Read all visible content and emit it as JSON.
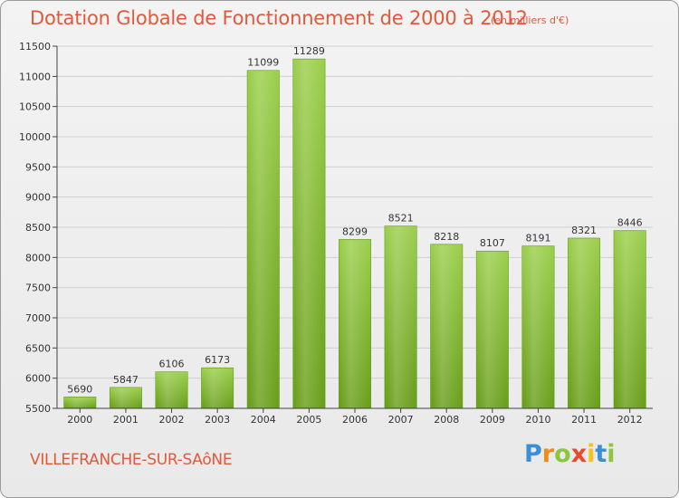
{
  "title": "Dotation Globale de Fonctionnement de 2000 à 2012",
  "subtitle": "(en milliers d'€)",
  "city": "VILLEFRANCHE-SUR-SAôNE",
  "logo": {
    "text": "Proxiti",
    "letters": [
      {
        "char": "P",
        "color": "#3a8fd6"
      },
      {
        "char": "r",
        "color": "#f08a1c"
      },
      {
        "char": "o",
        "color": "#8cc63f"
      },
      {
        "char": "x",
        "color": "#e84a2f"
      },
      {
        "char": "i",
        "color": "#f6c21c"
      },
      {
        "char": "t",
        "color": "#3a8fd6"
      },
      {
        "char": "i",
        "color": "#8cc63f"
      }
    ]
  },
  "colors": {
    "title": "#e05a3a",
    "bar_top": "#9ccf4e",
    "bar_bottom": "#6a9e1c",
    "axis": "#444444",
    "grid": "#cfcfcf"
  },
  "chart_data": {
    "type": "bar",
    "title": "Dotation Globale de Fonctionnement de 2000 à 2012",
    "subtitle": "(en milliers d'€)",
    "categories": [
      "2000",
      "2001",
      "2002",
      "2003",
      "2004",
      "2005",
      "2006",
      "2007",
      "2008",
      "2009",
      "2010",
      "2011",
      "2012"
    ],
    "values": [
      5690,
      5847,
      6106,
      6173,
      11099,
      11289,
      8299,
      8521,
      8218,
      8107,
      8191,
      8321,
      8446
    ],
    "ylim": [
      5500,
      11500
    ],
    "yticks": [
      5500,
      6000,
      6500,
      7000,
      7500,
      8000,
      8500,
      9000,
      9500,
      10000,
      10500,
      11000,
      11500
    ],
    "grid": true,
    "show_data_labels": true
  }
}
